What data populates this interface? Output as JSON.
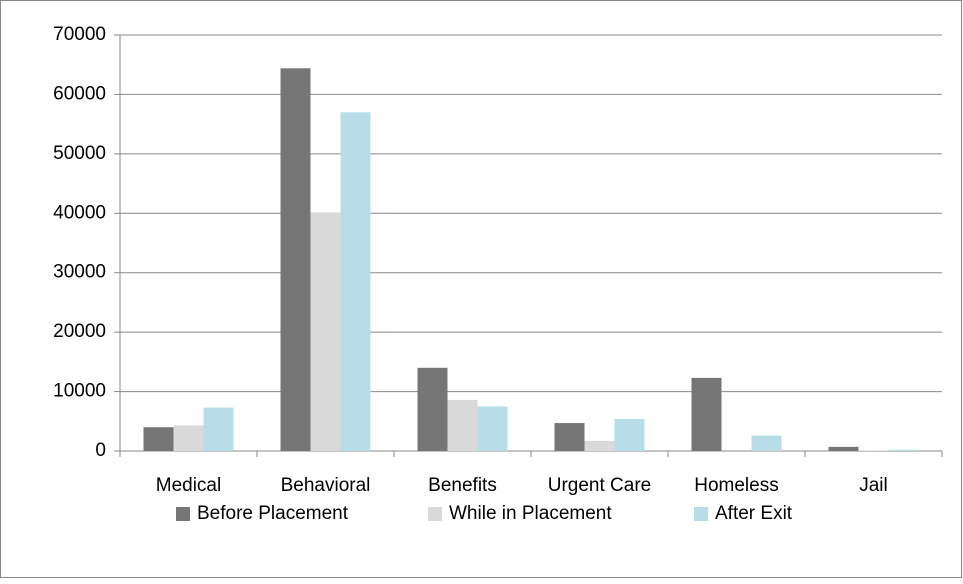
{
  "chart_data": {
    "type": "bar",
    "categories": [
      "Medical",
      "Behavioral",
      "Benefits",
      "Urgent Care",
      "Homeless",
      "Jail"
    ],
    "series": [
      {
        "name": "Before Placement",
        "color": "#767676",
        "values": [
          4000,
          64400,
          14000,
          4700,
          12300,
          700
        ]
      },
      {
        "name": "While in Placement",
        "color": "#d9d9d9",
        "values": [
          4300,
          40100,
          8600,
          1700,
          0,
          100
        ]
      },
      {
        "name": "After Exit",
        "color": "#b7dde8",
        "values": [
          7300,
          57000,
          7500,
          5400,
          2600,
          200
        ]
      }
    ],
    "ylim": [
      0,
      70000
    ],
    "yticks": [
      0,
      10000,
      20000,
      30000,
      40000,
      50000,
      60000,
      70000
    ],
    "grid": true,
    "legend": "bottom"
  }
}
